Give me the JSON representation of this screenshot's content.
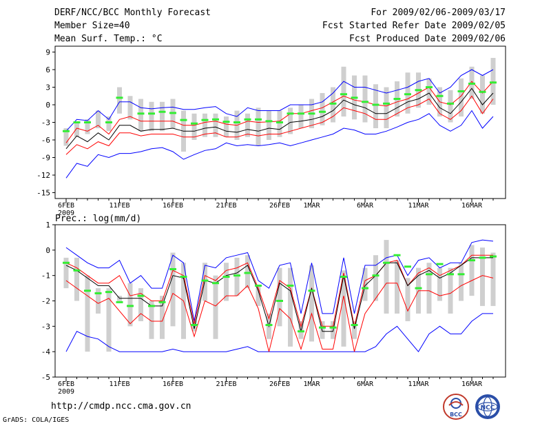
{
  "header": {
    "title": "DERF/NCC/BCC Monthly Forecast",
    "member_size": "Member Size=40",
    "variable": "Mean Surf. Temp.: °C",
    "period": "For 2009/02/06-2009/03/17",
    "refer_date": "Fcst Started Refer Date 2009/02/05",
    "produced_date": "Fcst Produced Date 2009/02/06"
  },
  "footer": {
    "url": "http://cmdp.ncc.cma.gov.cn",
    "credit": "GrADS: COLA/IGES"
  },
  "logos": {
    "bcc": "BCC",
    "ncc": "NCC"
  },
  "colors": {
    "max_min": "#0000ff",
    "spread": "#ff0000",
    "mean": "#000000",
    "obs": "#33ee33",
    "box": "#cfcfcf"
  },
  "chart_data": [
    {
      "type": "line",
      "title": "Mean Surf. Temp.: °C",
      "ylim": [
        -16,
        10
      ],
      "yticks": [
        9,
        6,
        3,
        0,
        -3,
        -6,
        -9,
        -12,
        -15
      ],
      "xtick_labels": [
        "6FEB",
        "11FEB",
        "16FEB",
        "21FEB",
        "26FEB",
        "1MAR",
        "6MAR",
        "11MAR",
        "16MAR"
      ],
      "xtick_days": [
        0,
        5,
        10,
        15,
        20,
        23,
        28,
        33,
        38
      ],
      "year_label": "2009",
      "x_days": [
        0,
        1,
        2,
        3,
        4,
        5,
        6,
        7,
        8,
        9,
        10,
        11,
        12,
        13,
        14,
        15,
        16,
        17,
        18,
        19,
        20,
        21,
        22,
        23,
        24,
        25,
        26,
        27,
        28,
        29,
        30,
        31,
        32,
        33,
        34,
        35,
        36,
        37,
        38,
        39,
        40
      ],
      "series": [
        {
          "name": "max",
          "values": [
            -4.5,
            -2.5,
            -2.7,
            -1.0,
            -2.5,
            0.5,
            0.5,
            -0.5,
            -0.7,
            -0.5,
            -0.4,
            -0.8,
            -0.8,
            -0.5,
            -0.3,
            -1.5,
            -2.0,
            -0.5,
            -1.0,
            -1.0,
            -1.0,
            0.0,
            0.0,
            0.0,
            0.5,
            2.0,
            4.0,
            3.0,
            3.0,
            2.5,
            2.0,
            2.5,
            3.0,
            4.0,
            4.5,
            2.0,
            3.0,
            5.0,
            6.0,
            5.0,
            6.0
          ]
        },
        {
          "name": "upper",
          "values": [
            -6.5,
            -4.0,
            -4.5,
            -3.5,
            -5.0,
            -2.5,
            -2.0,
            -2.8,
            -2.8,
            -2.8,
            -2.8,
            -3.5,
            -3.5,
            -3.0,
            -2.8,
            -3.3,
            -3.5,
            -2.8,
            -3.0,
            -2.9,
            -2.8,
            -1.5,
            -1.5,
            -1.0,
            -0.5,
            0.5,
            1.5,
            0.8,
            0.5,
            0.0,
            -0.2,
            0.5,
            1.0,
            2.0,
            3.0,
            0.5,
            0.0,
            1.5,
            4.0,
            2.0,
            4.0
          ]
        },
        {
          "name": "mean",
          "values": [
            -7.5,
            -5.3,
            -6.3,
            -4.8,
            -6.0,
            -3.5,
            -3.5,
            -4.5,
            -4.2,
            -4.2,
            -4.0,
            -4.5,
            -4.5,
            -4.0,
            -3.8,
            -4.5,
            -4.7,
            -4.2,
            -4.5,
            -4.0,
            -4.2,
            -3.0,
            -2.8,
            -2.5,
            -2.0,
            -1.0,
            0.8,
            0.0,
            -0.5,
            -1.5,
            -1.5,
            -0.5,
            0.5,
            1.0,
            2.0,
            -0.5,
            -1.5,
            0.5,
            2.8,
            0.0,
            2.0
          ]
        },
        {
          "name": "lower",
          "values": [
            -8.5,
            -6.8,
            -7.5,
            -6.3,
            -7.0,
            -4.8,
            -4.8,
            -5.3,
            -5.0,
            -5.0,
            -5.0,
            -5.5,
            -5.5,
            -5.0,
            -4.8,
            -5.5,
            -5.5,
            -5.0,
            -5.3,
            -5.0,
            -5.0,
            -4.5,
            -4.0,
            -3.5,
            -3.0,
            -2.0,
            -0.5,
            -1.0,
            -1.5,
            -2.5,
            -2.5,
            -1.5,
            -0.5,
            0.0,
            1.0,
            -1.5,
            -2.5,
            -1.0,
            1.5,
            -1.5,
            1.0
          ]
        },
        {
          "name": "min",
          "values": [
            -12.5,
            -10.0,
            -10.5,
            -8.5,
            -9.0,
            -8.3,
            -8.3,
            -8.0,
            -7.5,
            -7.3,
            -8.0,
            -9.3,
            -8.5,
            -7.8,
            -7.5,
            -6.5,
            -7.0,
            -6.8,
            -7.0,
            -6.8,
            -6.5,
            -7.0,
            -6.5,
            -6.0,
            -5.5,
            -5.0,
            -4.0,
            -4.3,
            -5.0,
            -5.0,
            -4.5,
            -3.8,
            -3.0,
            -2.5,
            -1.5,
            -3.5,
            -4.5,
            -3.5,
            -1.0,
            -4.0,
            -2.0
          ]
        },
        {
          "name": "box_top",
          "values": [
            -4.0,
            -3.0,
            -2.5,
            -1.0,
            -2.0,
            3.0,
            1.5,
            1.0,
            0.5,
            0.5,
            1.0,
            -1.0,
            -1.5,
            -1.5,
            -1.5,
            -2.0,
            -1.0,
            -1.5,
            -0.5,
            -1.0,
            -1.0,
            -0.5,
            0.0,
            1.0,
            2.0,
            3.0,
            6.5,
            5.0,
            5.0,
            3.5,
            3.0,
            4.0,
            5.5,
            5.5,
            4.5,
            3.0,
            2.5,
            4.5,
            6.5,
            5.0,
            8.0
          ]
        },
        {
          "name": "box_bottom",
          "values": [
            -7.0,
            -5.5,
            -5.0,
            -4.0,
            -4.5,
            -1.5,
            -2.5,
            -4.5,
            -4.5,
            -4.5,
            -4.0,
            -8.0,
            -6.0,
            -5.5,
            -5.5,
            -5.5,
            -6.0,
            -5.5,
            -7.0,
            -6.0,
            -5.5,
            -5.0,
            -4.0,
            -4.0,
            -3.5,
            -3.0,
            -2.0,
            -2.5,
            -3.0,
            -4.0,
            -4.0,
            -2.0,
            -1.5,
            -0.5,
            0.0,
            -2.0,
            -3.0,
            -2.0,
            1.0,
            -1.5,
            0.0
          ]
        },
        {
          "name": "obs",
          "values": [
            -4.5,
            -3.0,
            -3.0,
            null,
            -3.0,
            1.2,
            null,
            -1.5,
            -1.5,
            -1.2,
            -1.4,
            -2.6,
            -3.2,
            -2.6,
            -2.5,
            -2.9,
            -3.0,
            -2.5,
            -2.5,
            -2.8,
            -3.0,
            -1.5,
            -1.5,
            -1.5,
            -1.2,
            0.2,
            1.8,
            1.2,
            0.5,
            0.0,
            0.2,
            1.0,
            1.8,
            2.5,
            3.0,
            1.5,
            0.2,
            2.3,
            3.6,
            2.2,
            3.8
          ]
        }
      ]
    },
    {
      "type": "line",
      "title": "Prec.: log(mm/d)",
      "ylim": [
        -5,
        1
      ],
      "yticks": [
        1,
        0,
        -1,
        -2,
        -3,
        -4,
        -5
      ],
      "xtick_labels": [
        "6FEB",
        "11FEB",
        "16FEB",
        "21FEB",
        "26FEB",
        "1MAR",
        "6MAR",
        "11MAR",
        "16MAR"
      ],
      "xtick_days": [
        0,
        5,
        10,
        15,
        20,
        23,
        28,
        33,
        38
      ],
      "year_label": "2009",
      "x_days": [
        0,
        1,
        2,
        3,
        4,
        5,
        6,
        7,
        8,
        9,
        10,
        11,
        12,
        13,
        14,
        15,
        16,
        17,
        18,
        19,
        20,
        21,
        22,
        23,
        24,
        25,
        26,
        27,
        28,
        29,
        30,
        31,
        32,
        33,
        34,
        35,
        36,
        37,
        38,
        39,
        40
      ],
      "series": [
        {
          "name": "max",
          "values": [
            0.1,
            -0.2,
            -0.5,
            -0.7,
            -0.7,
            -0.4,
            -1.3,
            -1.0,
            -1.5,
            -1.5,
            -0.2,
            -0.5,
            -2.8,
            -0.6,
            -0.7,
            -0.3,
            -0.2,
            -0.1,
            -1.2,
            -1.5,
            -0.6,
            -0.5,
            -2.5,
            -0.5,
            -2.5,
            -2.5,
            -0.3,
            -2.5,
            -0.6,
            -0.6,
            -0.3,
            -0.2,
            -1.0,
            -0.4,
            -0.3,
            -0.7,
            -0.5,
            -0.5,
            0.3,
            0.4,
            0.35
          ]
        },
        {
          "name": "upper",
          "values": [
            -0.5,
            -0.7,
            -1.0,
            -1.3,
            -1.3,
            -1.0,
            -1.8,
            -1.7,
            -2.0,
            -2.0,
            -0.8,
            -1.0,
            -2.9,
            -1.0,
            -1.2,
            -0.8,
            -0.7,
            -0.5,
            -1.5,
            -2.7,
            -1.2,
            -1.5,
            -3.0,
            -1.5,
            -3.0,
            -3.0,
            -0.9,
            -3.0,
            -1.2,
            -1.0,
            -0.5,
            -0.4,
            -1.4,
            -0.9,
            -0.7,
            -1.0,
            -0.8,
            -0.6,
            -0.2,
            -0.2,
            -0.2
          ]
        },
        {
          "name": "mean",
          "values": [
            -0.6,
            -0.8,
            -1.1,
            -1.4,
            -1.4,
            -1.9,
            -1.9,
            -1.9,
            -2.2,
            -2.2,
            -1.0,
            -1.1,
            -3.1,
            -1.2,
            -1.3,
            -1.0,
            -0.9,
            -0.6,
            -1.6,
            -3.0,
            -1.3,
            -1.6,
            -3.2,
            -1.5,
            -3.2,
            -3.2,
            -1.0,
            -3.1,
            -1.4,
            -1.0,
            -0.5,
            -0.5,
            -1.4,
            -1.0,
            -0.8,
            -1.1,
            -0.9,
            -0.6,
            -0.3,
            -0.3,
            -0.3
          ]
        },
        {
          "name": "lower",
          "values": [
            -1.2,
            -1.5,
            -1.8,
            -2.1,
            -1.9,
            -2.4,
            -2.9,
            -2.5,
            -2.8,
            -2.8,
            -1.7,
            -2.0,
            -3.4,
            -2.0,
            -2.2,
            -1.8,
            -1.8,
            -1.4,
            -2.3,
            -4.0,
            -2.3,
            -2.7,
            -3.9,
            -2.5,
            -3.9,
            -3.9,
            -1.8,
            -4.0,
            -2.5,
            -1.9,
            -1.3,
            -1.3,
            -2.4,
            -1.6,
            -1.6,
            -1.8,
            -1.7,
            -1.4,
            -1.2,
            -1.0,
            -1.1
          ]
        },
        {
          "name": "min",
          "values": [
            -4.0,
            -3.2,
            -3.4,
            -3.5,
            -3.8,
            -4.0,
            -4.0,
            -4.0,
            -4.0,
            -4.0,
            -3.9,
            -4.0,
            -4.0,
            -4.0,
            -4.0,
            -4.0,
            -3.9,
            -3.8,
            -4.0,
            -4.0,
            -4.0,
            -4.0,
            -4.0,
            -4.0,
            -4.0,
            -4.0,
            -4.0,
            -4.0,
            -4.0,
            -3.8,
            -3.3,
            -3.0,
            -3.5,
            -4.0,
            -3.3,
            -3.0,
            -3.3,
            -3.3,
            -2.8,
            -2.5,
            -2.5
          ]
        },
        {
          "name": "box_top",
          "values": [
            -0.3,
            -0.3,
            -1.0,
            -1.5,
            -1.5,
            -1.8,
            -1.3,
            -1.5,
            -2.0,
            -1.8,
            -0.1,
            -0.5,
            -2.8,
            -0.5,
            -1.0,
            -0.5,
            -0.3,
            -0.2,
            -1.4,
            -2.5,
            -0.7,
            -0.7,
            -2.8,
            -0.6,
            -2.8,
            -2.8,
            -0.8,
            -2.8,
            -0.7,
            -0.2,
            0.4,
            -0.4,
            -1.1,
            -0.7,
            -0.5,
            -0.7,
            -0.7,
            -0.5,
            0.2,
            0.1,
            -0.1
          ]
        },
        {
          "name": "box_bottom",
          "values": [
            -1.5,
            -2.0,
            -4.0,
            -2.5,
            -4.0,
            -2.0,
            -3.0,
            -2.8,
            -3.5,
            -3.5,
            -3.0,
            -3.5,
            -3.2,
            -2.0,
            -3.5,
            -2.0,
            -1.8,
            -1.5,
            -2.2,
            -3.5,
            -3.0,
            -3.8,
            -3.5,
            -3.6,
            -3.5,
            -3.5,
            -3.8,
            -3.5,
            -2.0,
            -2.0,
            -2.5,
            -2.5,
            -2.8,
            -2.5,
            -2.5,
            -2.0,
            -2.5,
            -2.0,
            -1.8,
            -2.2,
            -2.2
          ]
        },
        {
          "name": "obs",
          "values": [
            -0.5,
            -0.8,
            -1.6,
            -1.7,
            -1.65,
            -2.05,
            -2.2,
            -1.8,
            -2.2,
            -2.05,
            -0.75,
            -1.05,
            -2.95,
            -1.2,
            -1.3,
            -1.05,
            -1.0,
            -0.9,
            -1.4,
            -2.95,
            -2.0,
            -1.4,
            -3.2,
            -1.6,
            -3.05,
            -3.05,
            -1.05,
            -2.95,
            -1.5,
            -1.0,
            -0.5,
            -0.2,
            -0.65,
            -1.5,
            -0.95,
            -0.55,
            -0.95,
            -0.95,
            -0.4,
            -0.3,
            -0.25
          ]
        }
      ]
    }
  ]
}
